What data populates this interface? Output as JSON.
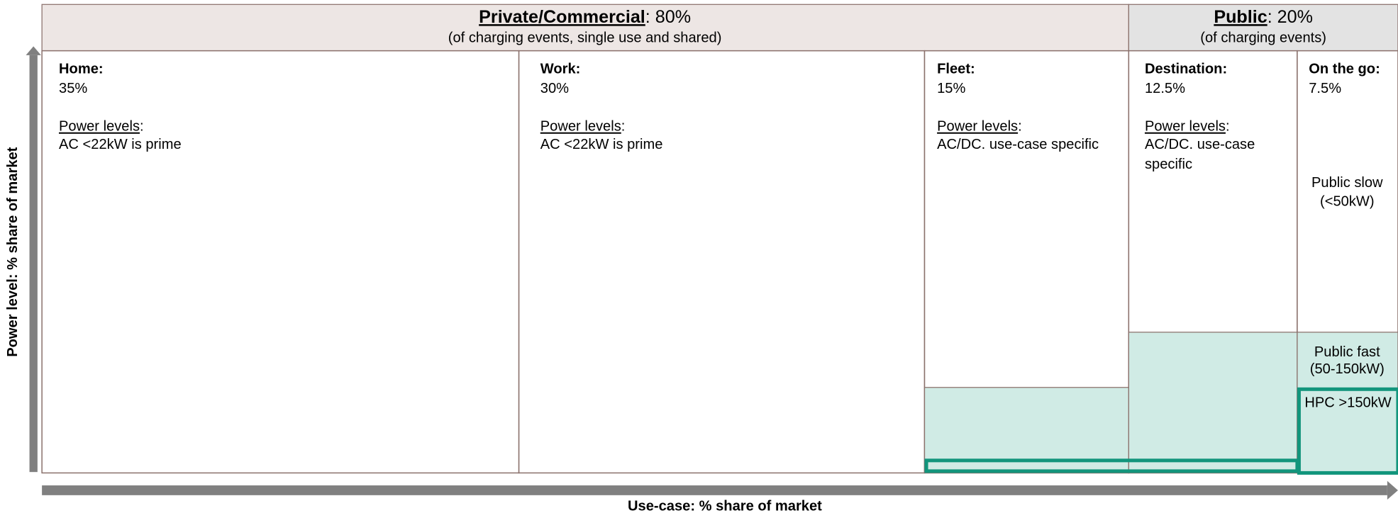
{
  "header": {
    "private": {
      "title": "Private/Commercial",
      "share": ": 80%",
      "note": "(of charging events, single use and shared)"
    },
    "public": {
      "title": "Public",
      "share": ": 20%",
      "note": "(of charging events)"
    }
  },
  "columns": [
    {
      "title": "Home:",
      "share": "35%",
      "power_label": "Power levels",
      "power_colon": ":",
      "power_text": [
        "AC <22kW is prime"
      ]
    },
    {
      "title": "Work:",
      "share": "30%",
      "power_label": "Power levels",
      "power_colon": ":",
      "power_text": [
        "AC <22kW is prime"
      ]
    },
    {
      "title": "Fleet:",
      "share": "15%",
      "power_label": "Power levels",
      "power_colon": ":",
      "power_text": [
        "AC/DC. use-case specific"
      ]
    },
    {
      "title": "Destination:",
      "share": "12.5%",
      "power_label": "Power levels",
      "power_colon": ":",
      "power_text": [
        "AC/DC. use-case",
        "specific"
      ]
    },
    {
      "title": "On the go:",
      "share": "7.5%"
    }
  ],
  "public_levels": {
    "slow": [
      "Public slow",
      "(<50kW)"
    ],
    "fast": [
      "Public fast",
      "(50-150kW)"
    ],
    "hpc": "HPC >150kW"
  },
  "axes": {
    "y_label": "Power level: % share of market",
    "x_label": "Use-case: % share of market"
  }
}
